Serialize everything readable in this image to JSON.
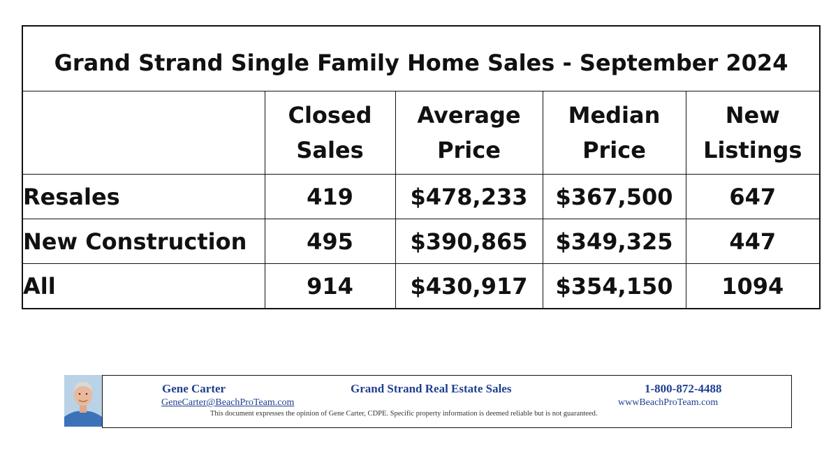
{
  "table": {
    "title": "Grand Strand Single Family Home Sales - September 2024",
    "headers": [
      {
        "line1": "Closed",
        "line2": "Sales"
      },
      {
        "line1": "Average",
        "line2": "Price"
      },
      {
        "line1": "Median",
        "line2": "Price"
      },
      {
        "line1": "New",
        "line2": "Listings"
      }
    ],
    "rows": [
      {
        "label": "Resales",
        "closed": "419",
        "avg": "$478,233",
        "median": "$367,500",
        "listings": "647"
      },
      {
        "label": "New Construction",
        "closed": "495",
        "avg": "$390,865",
        "median": "$349,325",
        "listings": "447"
      },
      {
        "label": "All",
        "closed": "914",
        "avg": "$430,917",
        "median": "$354,150",
        "listings": "1094"
      }
    ]
  },
  "footer": {
    "name": "Gene Carter",
    "company": "Grand Strand Real Estate Sales",
    "phone": "1-800-872-4488",
    "email": "GeneCarter@BeachProTeam.com",
    "website": "wwwBeachProTeam.com",
    "disclaimer": "This document expresses the opinion of Gene Carter, CDPE.  Specific property information is deemed reliable but is not guaranteed.",
    "photo_icon": "agent-photo"
  }
}
